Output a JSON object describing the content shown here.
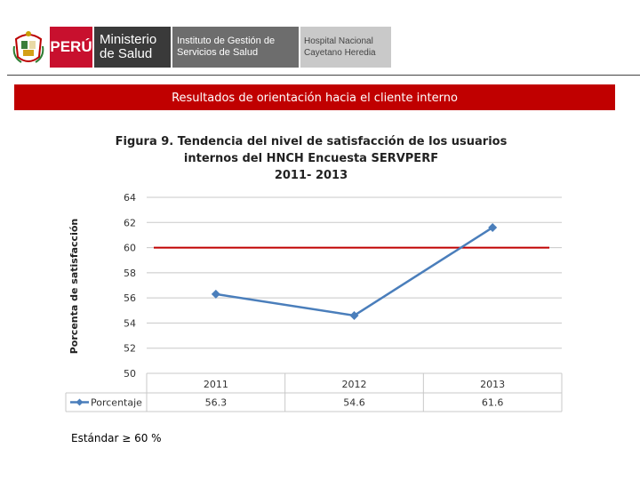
{
  "header": {
    "country": "PERÚ",
    "ministry_line1": "Ministerio",
    "ministry_line2": "de Salud",
    "institute_line1": "Instituto de Gestión de",
    "institute_line2": "Servicios de Salud",
    "hospital_line1": "Hospital Nacional",
    "hospital_line2": "Cayetano Heredia"
  },
  "banner": {
    "text": "Resultados de orientación hacia el cliente  interno"
  },
  "chart_data": {
    "type": "line",
    "title_lines": [
      "Figura 9. Tendencia del nivel de satisfacción de los usuarios",
      "internos del HNCH Encuesta SERVPERF",
      "2011- 2013"
    ],
    "ylabel": "Porcenta de satisfacción",
    "xlabel": "",
    "categories": [
      "2011",
      "2012",
      "2013"
    ],
    "series": [
      {
        "name": "Porcentaje",
        "values": [
          56.3,
          54.6,
          61.6
        ],
        "value_labels": [
          "56.3",
          "54.6",
          "61.6"
        ],
        "color": "#4a7ebb"
      }
    ],
    "reference_line": {
      "value": 60,
      "color": "#c00000"
    },
    "ylim": [
      50,
      64
    ],
    "yticks": [
      "50",
      "52",
      "54",
      "56",
      "58",
      "60",
      "62",
      "64"
    ],
    "grid": true,
    "legend": "data-table-bottom",
    "data_table": true
  },
  "footer": {
    "standard": "Estándar ≥ 60 %"
  }
}
